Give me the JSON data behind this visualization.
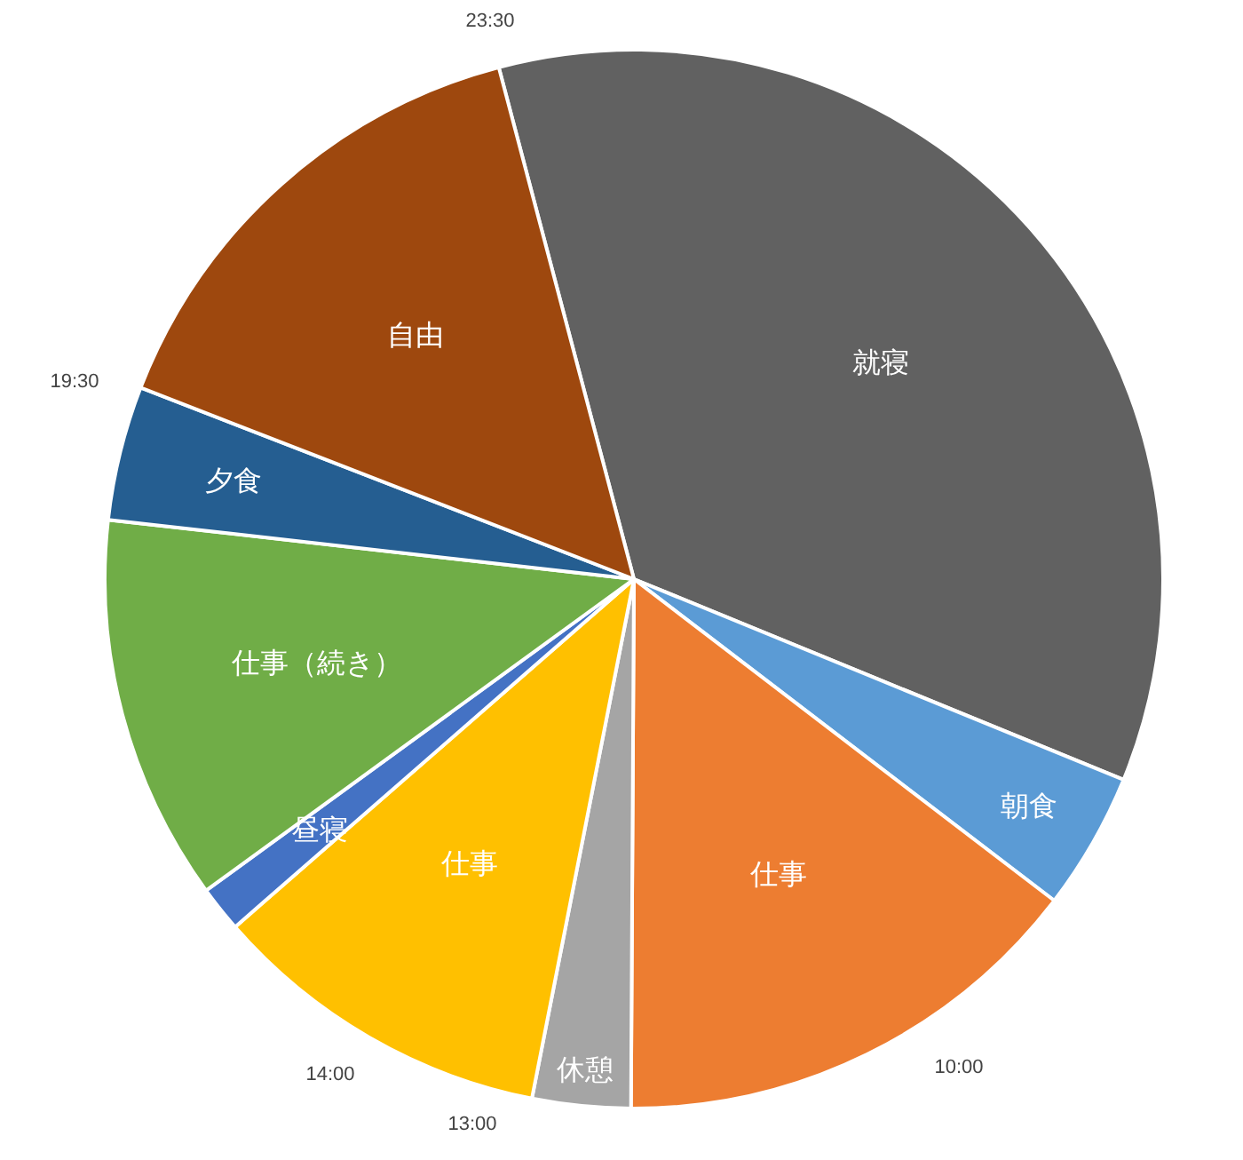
{
  "chart_data": {
    "type": "pie",
    "categories": [
      "就寝",
      "朝食",
      "仕事",
      "休憩",
      "仕事",
      "昼寝",
      "仕事（続き）",
      "夕食",
      "自由"
    ],
    "values": [
      35.3,
      4.2,
      14.7,
      3.0,
      10.5,
      1.4,
      11.8,
      4.1,
      15.0
    ],
    "colors": [
      "#616161",
      "#5b9bd5",
      "#ed7d31",
      "#a5a5a5",
      "#ffc000",
      "#4472c4",
      "#70ad47",
      "#255e91",
      "#9e480e"
    ],
    "annotations": [
      "23:30",
      "19:30",
      "14:00",
      "13:00",
      "10:00"
    ]
  }
}
